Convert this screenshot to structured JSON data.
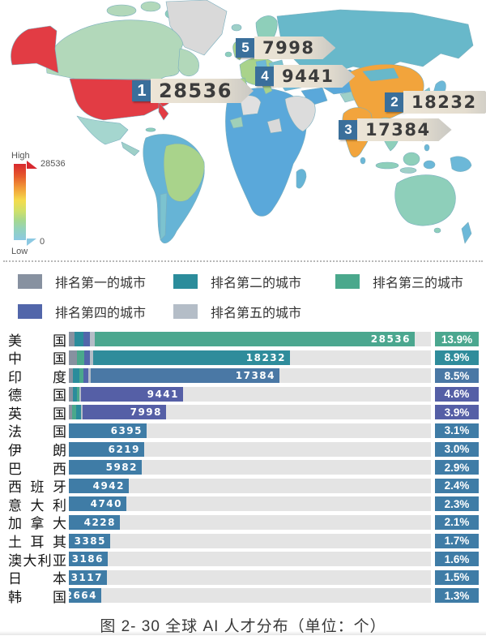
{
  "map": {
    "callouts": [
      {
        "rank": "1",
        "value": "28536"
      },
      {
        "rank": "2",
        "value": "18232"
      },
      {
        "rank": "3",
        "value": "17384"
      },
      {
        "rank": "4",
        "value": "9441"
      },
      {
        "rank": "5",
        "value": "7998"
      }
    ],
    "gradient": {
      "high_label": "High",
      "low_label": "Low",
      "max": "28536",
      "min": "0"
    }
  },
  "legend": {
    "items": [
      {
        "label": "排名第一的城市",
        "color": "#8791a0"
      },
      {
        "label": "排名第二的城市",
        "color": "#2b8c9b"
      },
      {
        "label": "排名第三的城市",
        "color": "#4aa88c"
      },
      {
        "label": "排名第四的城市",
        "color": "#5266aa"
      },
      {
        "label": "排名第五的城市",
        "color": "#b4bdc7"
      }
    ]
  },
  "chart_data": {
    "type": "bar",
    "orientation": "horizontal",
    "title": "图 2- 30 全球 AI 人才分布（单位：个）",
    "unit": "个",
    "max_value": 28536,
    "rows": [
      {
        "country": "美国",
        "value": 28536,
        "percent": "13.9%",
        "color": "#4ba78f",
        "segments": [
          {
            "rank": 1,
            "w": 7
          },
          {
            "rank": 2,
            "w": 11
          },
          {
            "rank": 4,
            "w": 8
          },
          {
            "rank": 5,
            "w": 6
          }
        ]
      },
      {
        "country": "中国",
        "value": 18232,
        "percent": "8.9%",
        "color": "#2f8c9b",
        "segments": [
          {
            "rank": 1,
            "w": 10
          },
          {
            "rank": 3,
            "w": 9
          },
          {
            "rank": 4,
            "w": 7
          },
          {
            "rank": 5,
            "w": 4
          }
        ]
      },
      {
        "country": "印度",
        "value": 17384,
        "percent": "8.5%",
        "color": "#4a78a5",
        "segments": [
          {
            "rank": 1,
            "w": 5
          },
          {
            "rank": 2,
            "w": 8
          },
          {
            "rank": 3,
            "w": 5
          },
          {
            "rank": 4,
            "w": 6
          },
          {
            "rank": 5,
            "w": 3
          }
        ]
      },
      {
        "country": "德国",
        "value": 9441,
        "percent": "4.6%",
        "color": "#555fa6",
        "segments": [
          {
            "rank": 1,
            "w": 5
          },
          {
            "rank": 2,
            "w": 5
          },
          {
            "rank": 3,
            "w": 3
          },
          {
            "rank": 5,
            "w": 2
          }
        ]
      },
      {
        "country": "英国",
        "value": 7998,
        "percent": "3.9%",
        "color": "#555fa6",
        "segments": [
          {
            "rank": 1,
            "w": 4
          },
          {
            "rank": 3,
            "w": 5
          },
          {
            "rank": 2,
            "w": 6
          },
          {
            "rank": 5,
            "w": 2
          }
        ]
      },
      {
        "country": "法国",
        "value": 6395,
        "percent": "3.1%",
        "color": "#3f7ca6",
        "segments": []
      },
      {
        "country": "伊朗",
        "value": 6219,
        "percent": "3.0%",
        "color": "#3f7ca6",
        "segments": []
      },
      {
        "country": "巴西",
        "value": 5982,
        "percent": "2.9%",
        "color": "#3f7ca6",
        "segments": []
      },
      {
        "country": "西班牙",
        "value": 4942,
        "percent": "2.4%",
        "color": "#3f7ca6",
        "segments": []
      },
      {
        "country": "意大利",
        "value": 4740,
        "percent": "2.3%",
        "color": "#3f7ca6",
        "segments": []
      },
      {
        "country": "加拿大",
        "value": 4228,
        "percent": "2.1%",
        "color": "#3f7ca6",
        "segments": []
      },
      {
        "country": "土耳其",
        "value": 3385,
        "percent": "1.7%",
        "color": "#3f7ca6",
        "segments": []
      },
      {
        "country": "澳大利亚",
        "value": 3186,
        "percent": "1.6%",
        "color": "#3f7ca6",
        "segments": []
      },
      {
        "country": "日本",
        "value": 3117,
        "percent": "1.5%",
        "color": "#3f7ca6",
        "segments": []
      },
      {
        "country": "韩国",
        "value": 2664,
        "percent": "1.3%",
        "color": "#3f7ca6",
        "segments": []
      }
    ]
  },
  "caption": "图 2- 30 全球 AI 人才分布（单位：个）"
}
